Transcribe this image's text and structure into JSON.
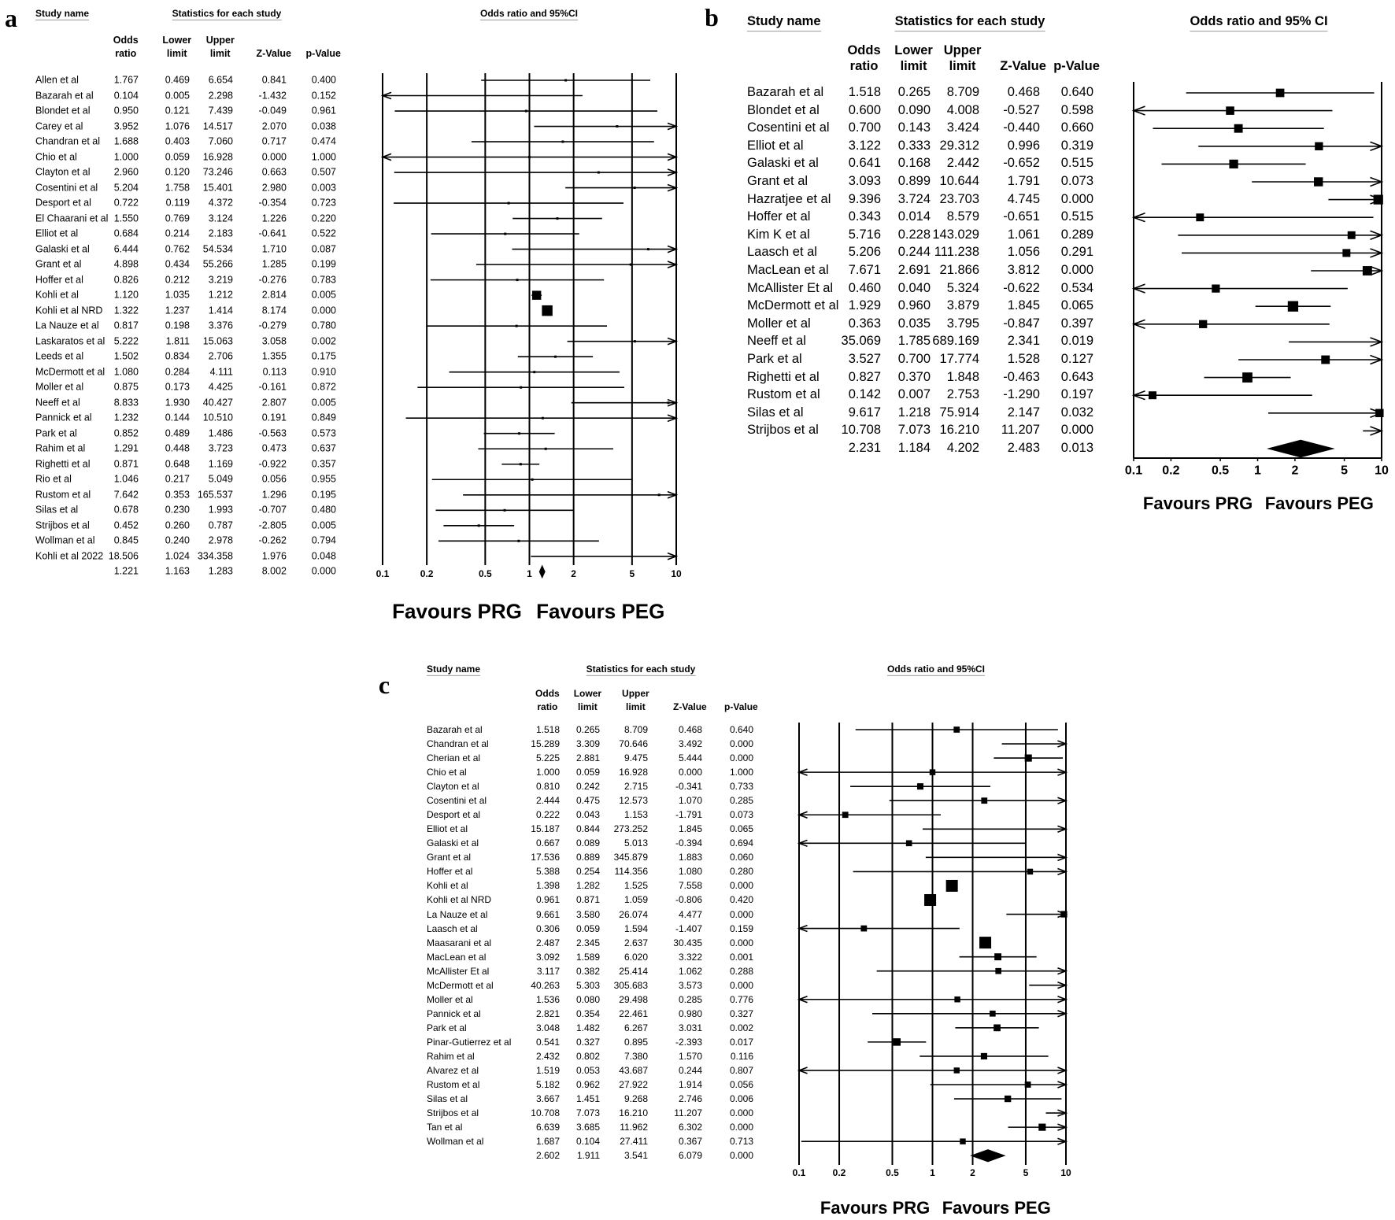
{
  "chart_data": [
    {
      "type": "forest",
      "label": "a",
      "study_header": "Study name",
      "stats_header": "Statistics for each study",
      "plot_header": "Odds ratio and 95%CI",
      "columns": [
        "Odds ratio",
        "Lower limit",
        "Upper limit",
        "Z-Value",
        "p-Value"
      ],
      "rows": [
        [
          "Allen et al",
          "1.767",
          "0.469",
          "6.654",
          "0.841",
          "0.400"
        ],
        [
          "Bazarah et al",
          "0.104",
          "0.005",
          "2.298",
          "-1.432",
          "0.152"
        ],
        [
          "Blondet et al",
          "0.950",
          "0.121",
          "7.439",
          "-0.049",
          "0.961"
        ],
        [
          "Carey et al",
          "3.952",
          "1.076",
          "14.517",
          "2.070",
          "0.038"
        ],
        [
          "Chandran et al",
          "1.688",
          "0.403",
          "7.060",
          "0.717",
          "0.474"
        ],
        [
          "Chio et al",
          "1.000",
          "0.059",
          "16.928",
          "0.000",
          "1.000"
        ],
        [
          "Clayton et al",
          "2.960",
          "0.120",
          "73.246",
          "0.663",
          "0.507"
        ],
        [
          "Cosentini et al",
          "5.204",
          "1.758",
          "15.401",
          "2.980",
          "0.003"
        ],
        [
          "Desport et al",
          "0.722",
          "0.119",
          "4.372",
          "-0.354",
          "0.723"
        ],
        [
          "El Chaarani et al",
          "1.550",
          "0.769",
          "3.124",
          "1.226",
          "0.220"
        ],
        [
          "Elliot et al",
          "0.684",
          "0.214",
          "2.183",
          "-0.641",
          "0.522"
        ],
        [
          "Galaski et al",
          "6.444",
          "0.762",
          "54.534",
          "1.710",
          "0.087"
        ],
        [
          "Grant et al",
          "4.898",
          "0.434",
          "55.266",
          "1.285",
          "0.199"
        ],
        [
          "Hoffer et al",
          "0.826",
          "0.212",
          "3.219",
          "-0.276",
          "0.783"
        ],
        [
          "Kohli et al",
          "1.120",
          "1.035",
          "1.212",
          "2.814",
          "0.005"
        ],
        [
          "Kohli et al NRD",
          "1.322",
          "1.237",
          "1.414",
          "8.174",
          "0.000"
        ],
        [
          "La Nauze et al",
          "0.817",
          "0.198",
          "3.376",
          "-0.279",
          "0.780"
        ],
        [
          "Laskaratos et al",
          "5.222",
          "1.811",
          "15.063",
          "3.058",
          "0.002"
        ],
        [
          "Leeds et al",
          "1.502",
          "0.834",
          "2.706",
          "1.355",
          "0.175"
        ],
        [
          "McDermott et al",
          "1.080",
          "0.284",
          "4.111",
          "0.113",
          "0.910"
        ],
        [
          "Moller et al",
          "0.875",
          "0.173",
          "4.425",
          "-0.161",
          "0.872"
        ],
        [
          "Neeff et al",
          "8.833",
          "1.930",
          "40.427",
          "2.807",
          "0.005"
        ],
        [
          "Pannick et al",
          "1.232",
          "0.144",
          "10.510",
          "0.191",
          "0.849"
        ],
        [
          "Park et al",
          "0.852",
          "0.489",
          "1.486",
          "-0.563",
          "0.573"
        ],
        [
          "Rahim et al",
          "1.291",
          "0.448",
          "3.723",
          "0.473",
          "0.637"
        ],
        [
          "Righetti et al",
          "0.871",
          "0.648",
          "1.169",
          "-0.922",
          "0.357"
        ],
        [
          "Rio et al",
          "1.046",
          "0.217",
          "5.049",
          "0.056",
          "0.955"
        ],
        [
          "Rustom et al",
          "7.642",
          "0.353",
          "165.537",
          "1.296",
          "0.195"
        ],
        [
          "Silas et al",
          "0.678",
          "0.230",
          "1.993",
          "-0.707",
          "0.480"
        ],
        [
          "Strijbos et al",
          "0.452",
          "0.260",
          "0.787",
          "-2.805",
          "0.005"
        ],
        [
          "Wollman et al",
          "0.845",
          "0.240",
          "2.978",
          "-0.262",
          "0.794"
        ],
        [
          "Kohli et al 2022",
          "18.506",
          "1.024",
          "334.358",
          "1.976",
          "0.048"
        ]
      ],
      "summary": [
        "1.221",
        "1.163",
        "1.283",
        "8.002",
        "0.000"
      ],
      "xlim": [
        0.1,
        10
      ],
      "xticks": [
        0.1,
        0.2,
        0.5,
        1,
        2,
        5,
        10
      ],
      "log": true,
      "grid": true,
      "favours": [
        "Favours PRG",
        "Favours PEG"
      ],
      "color": "#000000"
    },
    {
      "type": "forest",
      "label": "b",
      "study_header": "Study name",
      "stats_header": "Statistics for each study",
      "plot_header": "Odds ratio and 95% CI",
      "columns": [
        "Odds ratio",
        "Lower limit",
        "Upper limit",
        "Z-Value",
        "p-Value"
      ],
      "rows": [
        [
          "Bazarah et al",
          "1.518",
          "0.265",
          "8.709",
          "0.468",
          "0.640"
        ],
        [
          "Blondet et al",
          "0.600",
          "0.090",
          "4.008",
          "-0.527",
          "0.598"
        ],
        [
          "Cosentini et al",
          "0.700",
          "0.143",
          "3.424",
          "-0.440",
          "0.660"
        ],
        [
          "Elliot et al",
          "3.122",
          "0.333",
          "29.312",
          "0.996",
          "0.319"
        ],
        [
          "Galaski et al",
          "0.641",
          "0.168",
          "2.442",
          "-0.652",
          "0.515"
        ],
        [
          "Grant et al",
          "3.093",
          "0.899",
          "10.644",
          "1.791",
          "0.073"
        ],
        [
          "Hazratjee et al",
          "9.396",
          "3.724",
          "23.703",
          "4.745",
          "0.000"
        ],
        [
          "Hoffer et al",
          "0.343",
          "0.014",
          "8.579",
          "-0.651",
          "0.515"
        ],
        [
          "Kim K et al",
          "5.716",
          "0.228",
          "143.029",
          "1.061",
          "0.289"
        ],
        [
          "Laasch et al",
          "5.206",
          "0.244",
          "111.238",
          "1.056",
          "0.291"
        ],
        [
          "MacLean et al",
          "7.671",
          "2.691",
          "21.866",
          "3.812",
          "0.000"
        ],
        [
          "McAllister Et al",
          "0.460",
          "0.040",
          "5.324",
          "-0.622",
          "0.534"
        ],
        [
          "McDermott et al",
          "1.929",
          "0.960",
          "3.879",
          "1.845",
          "0.065"
        ],
        [
          "Moller et al",
          "0.363",
          "0.035",
          "3.795",
          "-0.847",
          "0.397"
        ],
        [
          "Neeff et al",
          "35.069",
          "1.785",
          "689.169",
          "2.341",
          "0.019"
        ],
        [
          "Park et al",
          "3.527",
          "0.700",
          "17.774",
          "1.528",
          "0.127"
        ],
        [
          "Righetti et al",
          "0.827",
          "0.370",
          "1.848",
          "-0.463",
          "0.643"
        ],
        [
          "Rustom et al",
          "0.142",
          "0.007",
          "2.753",
          "-1.290",
          "0.197"
        ],
        [
          "Silas et al",
          "9.617",
          "1.218",
          "75.914",
          "2.147",
          "0.032"
        ],
        [
          "Strijbos et al",
          "10.708",
          "7.073",
          "16.210",
          "11.207",
          "0.000"
        ]
      ],
      "summary": [
        "2.231",
        "1.184",
        "4.202",
        "2.483",
        "0.013"
      ],
      "xlim": [
        0.1,
        10
      ],
      "xticks": [
        0.1,
        0.2,
        0.5,
        1,
        2,
        5,
        10
      ],
      "log": true,
      "grid": false,
      "favours": [
        "Favours PRG",
        "Favours PEG"
      ],
      "color": "#000000"
    },
    {
      "type": "forest",
      "label": "c",
      "study_header": "Study name",
      "stats_header": "Statistics for each study",
      "plot_header": "Odds ratio and 95%CI",
      "columns": [
        "Odds ratio",
        "Lower limit",
        "Upper limit",
        "Z-Value",
        "p-Value"
      ],
      "rows": [
        [
          "Bazarah et al",
          "1.518",
          "0.265",
          "8.709",
          "0.468",
          "0.640"
        ],
        [
          "Chandran et al",
          "15.289",
          "3.309",
          "70.646",
          "3.492",
          "0.000"
        ],
        [
          "Cherian et al",
          "5.225",
          "2.881",
          "9.475",
          "5.444",
          "0.000"
        ],
        [
          "Chio et al",
          "1.000",
          "0.059",
          "16.928",
          "0.000",
          "1.000"
        ],
        [
          "Clayton et al",
          "0.810",
          "0.242",
          "2.715",
          "-0.341",
          "0.733"
        ],
        [
          "Cosentini et al",
          "2.444",
          "0.475",
          "12.573",
          "1.070",
          "0.285"
        ],
        [
          "Desport et al",
          "0.222",
          "0.043",
          "1.153",
          "-1.791",
          "0.073"
        ],
        [
          "Elliot et al",
          "15.187",
          "0.844",
          "273.252",
          "1.845",
          "0.065"
        ],
        [
          "Galaski et al",
          "0.667",
          "0.089",
          "5.013",
          "-0.394",
          "0.694"
        ],
        [
          "Grant et al",
          "17.536",
          "0.889",
          "345.879",
          "1.883",
          "0.060"
        ],
        [
          "Hoffer et al",
          "5.388",
          "0.254",
          "114.356",
          "1.080",
          "0.280"
        ],
        [
          "Kohli et al",
          "1.398",
          "1.282",
          "1.525",
          "7.558",
          "0.000"
        ],
        [
          "Kohli et al NRD",
          "0.961",
          "0.871",
          "1.059",
          "-0.806",
          "0.420"
        ],
        [
          "La Nauze et al",
          "9.661",
          "3.580",
          "26.074",
          "4.477",
          "0.000"
        ],
        [
          "Laasch et al",
          "0.306",
          "0.059",
          "1.594",
          "-1.407",
          "0.159"
        ],
        [
          "Maasarani et al",
          "2.487",
          "2.345",
          "2.637",
          "30.435",
          "0.000"
        ],
        [
          "MacLean et al",
          "3.092",
          "1.589",
          "6.020",
          "3.322",
          "0.001"
        ],
        [
          "McAllister Et al",
          "3.117",
          "0.382",
          "25.414",
          "1.062",
          "0.288"
        ],
        [
          "McDermott et al",
          "40.263",
          "5.303",
          "305.683",
          "3.573",
          "0.000"
        ],
        [
          "Moller et al",
          "1.536",
          "0.080",
          "29.498",
          "0.285",
          "0.776"
        ],
        [
          "Pannick et al",
          "2.821",
          "0.354",
          "22.461",
          "0.980",
          "0.327"
        ],
        [
          "Park et al",
          "3.048",
          "1.482",
          "6.267",
          "3.031",
          "0.002"
        ],
        [
          "Pinar-Gutierrez et al",
          "0.541",
          "0.327",
          "0.895",
          "-2.393",
          "0.017"
        ],
        [
          "Rahim et al",
          "2.432",
          "0.802",
          "7.380",
          "1.570",
          "0.116"
        ],
        [
          "Alvarez et al",
          "1.519",
          "0.053",
          "43.687",
          "0.244",
          "0.807"
        ],
        [
          "Rustom et al",
          "5.182",
          "0.962",
          "27.922",
          "1.914",
          "0.056"
        ],
        [
          "Silas et al",
          "3.667",
          "1.451",
          "9.268",
          "2.746",
          "0.006"
        ],
        [
          "Strijbos et al",
          "10.708",
          "7.073",
          "16.210",
          "11.207",
          "0.000"
        ],
        [
          "Tan et al",
          "6.639",
          "3.685",
          "11.962",
          "6.302",
          "0.000"
        ],
        [
          "Wollman et al",
          "1.687",
          "0.104",
          "27.411",
          "0.367",
          "0.713"
        ]
      ],
      "summary": [
        "2.602",
        "1.911",
        "3.541",
        "6.079",
        "0.000"
      ],
      "xlim": [
        0.1,
        10
      ],
      "xticks": [
        0.1,
        0.2,
        0.5,
        1,
        2,
        5,
        10
      ],
      "log": true,
      "grid": true,
      "favours": [
        "Favours PRG",
        "Favours PEG"
      ],
      "color": "#000000"
    }
  ]
}
